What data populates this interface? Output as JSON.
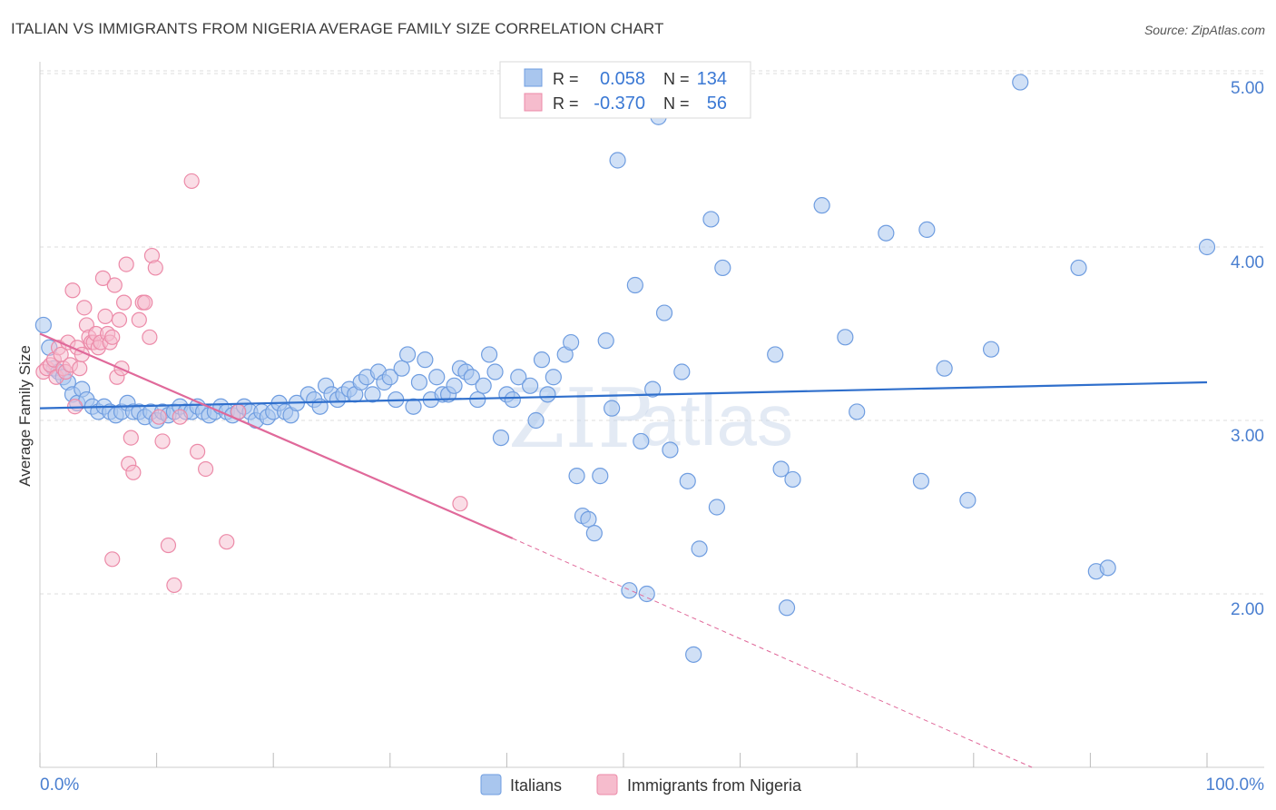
{
  "header": {
    "title": "ITALIAN VS IMMIGRANTS FROM NIGERIA AVERAGE FAMILY SIZE CORRELATION CHART",
    "source": "Source: ZipAtlas.com"
  },
  "watermark": {
    "zip": "ZIP",
    "atlas": "atlas"
  },
  "legend_box": {
    "rows": [
      {
        "r_label": "R = ",
        "r_value": "0.058",
        "n_label": "N = ",
        "n_value": "134"
      },
      {
        "r_label": "R = ",
        "r_value": "-0.370",
        "n_label": "N = ",
        "n_value": "56"
      }
    ]
  },
  "bottom_legend": {
    "italians": "Italians",
    "nigeria": "Immigrants from Nigeria"
  },
  "colors": {
    "blue_fill": "#a9c6ee",
    "blue_stroke": "#6f9de0",
    "blue_line": "#2f6fcc",
    "pink_fill": "#f6bccd",
    "pink_stroke": "#ec8aa8",
    "pink_line": "#e0699a",
    "grid": "#dddddd",
    "tick_text": "#4a7fd0"
  },
  "chart_data": {
    "type": "scatter",
    "title": "ITALIAN VS IMMIGRANTS FROM NIGERIA AVERAGE FAMILY SIZE CORRELATION CHART",
    "xlabel": "",
    "ylabel": "Average Family Size",
    "xlim": [
      0,
      100
    ],
    "ylim": [
      1.0,
      5.15
    ],
    "x_tick_labels": [
      "0.0%",
      "100.0%"
    ],
    "y_ticks": [
      2.0,
      3.0,
      4.0,
      5.0
    ],
    "y_tick_labels": [
      "2.00",
      "3.00",
      "4.00",
      "5.00"
    ],
    "grid": true,
    "legend_position": "top-center",
    "series": [
      {
        "name": "Italians",
        "R": 0.058,
        "N": 134,
        "trend": {
          "x": [
            0,
            100
          ],
          "y": [
            3.07,
            3.22
          ]
        },
        "points": [
          [
            0.3,
            3.55
          ],
          [
            0.8,
            3.42
          ],
          [
            1.2,
            3.3
          ],
          [
            1.6,
            3.28
          ],
          [
            2.0,
            3.25
          ],
          [
            2.4,
            3.22
          ],
          [
            2.8,
            3.15
          ],
          [
            3.2,
            3.1
          ],
          [
            3.6,
            3.18
          ],
          [
            4.0,
            3.12
          ],
          [
            4.5,
            3.08
          ],
          [
            5.0,
            3.05
          ],
          [
            5.5,
            3.08
          ],
          [
            6.0,
            3.05
          ],
          [
            6.5,
            3.03
          ],
          [
            7.0,
            3.05
          ],
          [
            7.5,
            3.1
          ],
          [
            8.0,
            3.05
          ],
          [
            8.5,
            3.05
          ],
          [
            9.0,
            3.02
          ],
          [
            9.5,
            3.05
          ],
          [
            10.0,
            3.0
          ],
          [
            10.5,
            3.05
          ],
          [
            11.0,
            3.03
          ],
          [
            11.5,
            3.05
          ],
          [
            12.0,
            3.08
          ],
          [
            12.5,
            3.05
          ],
          [
            13.0,
            3.05
          ],
          [
            13.5,
            3.08
          ],
          [
            14.0,
            3.05
          ],
          [
            14.5,
            3.03
          ],
          [
            15.0,
            3.05
          ],
          [
            15.5,
            3.08
          ],
          [
            16.0,
            3.05
          ],
          [
            16.5,
            3.03
          ],
          [
            17.0,
            3.05
          ],
          [
            17.5,
            3.08
          ],
          [
            18.0,
            3.05
          ],
          [
            18.5,
            3.0
          ],
          [
            19.0,
            3.05
          ],
          [
            19.5,
            3.02
          ],
          [
            20.0,
            3.05
          ],
          [
            20.5,
            3.1
          ],
          [
            21.0,
            3.05
          ],
          [
            21.5,
            3.03
          ],
          [
            22.0,
            3.1
          ],
          [
            23.0,
            3.15
          ],
          [
            23.5,
            3.12
          ],
          [
            24.0,
            3.08
          ],
          [
            24.5,
            3.2
          ],
          [
            25.0,
            3.15
          ],
          [
            25.5,
            3.12
          ],
          [
            26.0,
            3.15
          ],
          [
            26.5,
            3.18
          ],
          [
            27.0,
            3.15
          ],
          [
            27.5,
            3.22
          ],
          [
            28.0,
            3.25
          ],
          [
            28.5,
            3.15
          ],
          [
            29.0,
            3.28
          ],
          [
            29.5,
            3.22
          ],
          [
            30.0,
            3.25
          ],
          [
            30.5,
            3.12
          ],
          [
            31.0,
            3.3
          ],
          [
            31.5,
            3.38
          ],
          [
            32.0,
            3.08
          ],
          [
            32.5,
            3.22
          ],
          [
            33.0,
            3.35
          ],
          [
            33.5,
            3.12
          ],
          [
            34.0,
            3.25
          ],
          [
            34.5,
            3.15
          ],
          [
            35.0,
            3.15
          ],
          [
            35.5,
            3.2
          ],
          [
            36.0,
            3.3
          ],
          [
            36.5,
            3.28
          ],
          [
            37.0,
            3.25
          ],
          [
            37.5,
            3.12
          ],
          [
            38.0,
            3.2
          ],
          [
            38.5,
            3.38
          ],
          [
            39.0,
            3.28
          ],
          [
            39.5,
            2.9
          ],
          [
            40.0,
            3.15
          ],
          [
            40.5,
            3.12
          ],
          [
            41.0,
            3.25
          ],
          [
            42.0,
            3.2
          ],
          [
            42.5,
            3.0
          ],
          [
            43.0,
            3.35
          ],
          [
            43.5,
            3.15
          ],
          [
            44.0,
            3.25
          ],
          [
            45.0,
            3.38
          ],
          [
            45.5,
            3.45
          ],
          [
            46.0,
            2.68
          ],
          [
            46.5,
            2.45
          ],
          [
            47.0,
            2.43
          ],
          [
            47.5,
            2.35
          ],
          [
            48.0,
            2.68
          ],
          [
            48.5,
            3.46
          ],
          [
            49.0,
            3.07
          ],
          [
            49.5,
            4.5
          ],
          [
            50.5,
            2.02
          ],
          [
            51.0,
            3.78
          ],
          [
            51.5,
            2.88
          ],
          [
            52.0,
            2.0
          ],
          [
            52.5,
            3.18
          ],
          [
            53.0,
            4.75
          ],
          [
            53.5,
            3.62
          ],
          [
            54.0,
            2.83
          ],
          [
            55.0,
            3.28
          ],
          [
            55.5,
            2.65
          ],
          [
            56.0,
            1.65
          ],
          [
            56.5,
            2.26
          ],
          [
            57.5,
            4.16
          ],
          [
            58.0,
            2.5
          ],
          [
            58.5,
            3.88
          ],
          [
            63.0,
            3.38
          ],
          [
            63.5,
            2.72
          ],
          [
            64.0,
            1.92
          ],
          [
            64.5,
            2.66
          ],
          [
            67.0,
            4.24
          ],
          [
            69.0,
            3.48
          ],
          [
            70.0,
            3.05
          ],
          [
            72.5,
            4.08
          ],
          [
            75.5,
            2.65
          ],
          [
            76.0,
            4.1
          ],
          [
            77.5,
            3.3
          ],
          [
            79.5,
            2.54
          ],
          [
            81.5,
            3.41
          ],
          [
            84.0,
            4.95
          ],
          [
            89.0,
            3.88
          ],
          [
            90.5,
            2.13
          ],
          [
            91.5,
            2.15
          ],
          [
            100.0,
            4.0
          ]
        ]
      },
      {
        "name": "Immigrants from Nigeria",
        "R": -0.37,
        "N": 56,
        "trend": {
          "x": [
            0,
            40.5
          ],
          "y": [
            3.5,
            2.32
          ]
        },
        "trend_extrapolated": {
          "x": [
            40.5,
            85
          ],
          "y": [
            2.32,
            1.0
          ]
        },
        "points": [
          [
            0.3,
            3.28
          ],
          [
            0.6,
            3.3
          ],
          [
            0.9,
            3.32
          ],
          [
            1.2,
            3.35
          ],
          [
            1.4,
            3.25
          ],
          [
            1.6,
            3.42
          ],
          [
            1.8,
            3.38
          ],
          [
            2.0,
            3.3
          ],
          [
            2.2,
            3.28
          ],
          [
            2.4,
            3.45
          ],
          [
            2.6,
            3.32
          ],
          [
            2.8,
            3.75
          ],
          [
            3.0,
            3.08
          ],
          [
            3.2,
            3.42
          ],
          [
            3.4,
            3.3
          ],
          [
            3.6,
            3.38
          ],
          [
            3.8,
            3.65
          ],
          [
            4.0,
            3.55
          ],
          [
            4.2,
            3.48
          ],
          [
            4.4,
            3.45
          ],
          [
            4.6,
            3.45
          ],
          [
            4.8,
            3.5
          ],
          [
            5.0,
            3.42
          ],
          [
            5.2,
            3.45
          ],
          [
            5.4,
            3.82
          ],
          [
            5.6,
            3.6
          ],
          [
            5.8,
            3.5
          ],
          [
            6.0,
            3.45
          ],
          [
            6.2,
            3.48
          ],
          [
            6.4,
            3.78
          ],
          [
            6.6,
            3.25
          ],
          [
            6.8,
            3.58
          ],
          [
            7.0,
            3.3
          ],
          [
            7.2,
            3.68
          ],
          [
            7.4,
            3.9
          ],
          [
            7.6,
            2.75
          ],
          [
            7.8,
            2.9
          ],
          [
            8.0,
            2.7
          ],
          [
            8.5,
            3.58
          ],
          [
            8.8,
            3.68
          ],
          [
            9.0,
            3.68
          ],
          [
            9.4,
            3.48
          ],
          [
            9.6,
            3.95
          ],
          [
            9.9,
            3.88
          ],
          [
            10.2,
            3.02
          ],
          [
            10.5,
            2.88
          ],
          [
            11.0,
            2.28
          ],
          [
            11.5,
            2.05
          ],
          [
            12.0,
            3.02
          ],
          [
            13.0,
            4.38
          ],
          [
            13.5,
            2.82
          ],
          [
            14.2,
            2.72
          ],
          [
            16.0,
            2.3
          ],
          [
            17.0,
            3.05
          ],
          [
            36.0,
            2.52
          ],
          [
            6.2,
            2.2
          ]
        ]
      }
    ]
  }
}
